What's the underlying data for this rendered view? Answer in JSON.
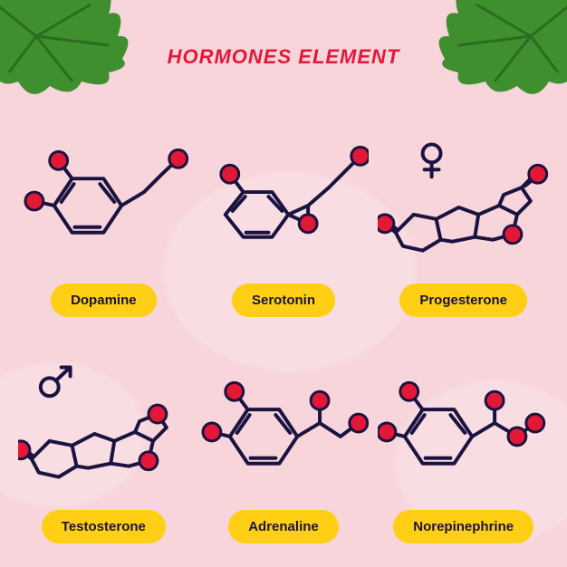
{
  "title": "HORMONES ELEMENT",
  "title_color": "#e31837",
  "title_fontsize": 22,
  "background_color": "#f7d5db",
  "blob_color": "#f9e6ea",
  "pill_bg": "#ffcf16",
  "pill_text_color": "#1a1340",
  "leaf_color": "#3f8f2f",
  "leaf_dark": "#2d6b1f",
  "bond_color": "#1a1340",
  "bond_width": 4,
  "dot_fill": "#e31837",
  "dot_stroke": "#1a1340",
  "dot_r": 10,
  "hormones": [
    {
      "label": "Dopamine"
    },
    {
      "label": "Serotonin"
    },
    {
      "label": "Progesterone"
    },
    {
      "label": "Testosterone"
    },
    {
      "label": "Adrenaline"
    },
    {
      "label": "Norepinephrine"
    }
  ]
}
